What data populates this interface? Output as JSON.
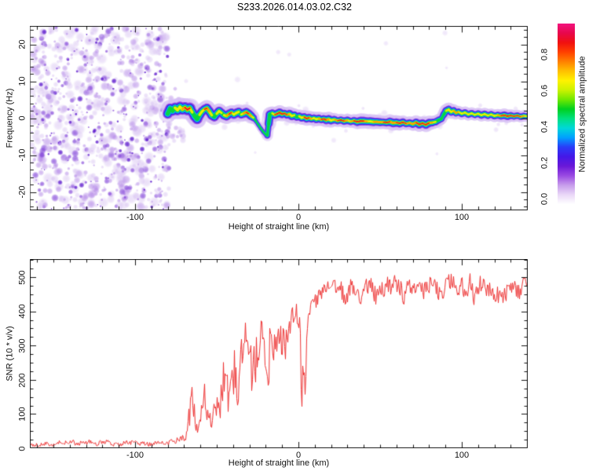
{
  "figure": {
    "title": "S233.2026.014.03.02.C32"
  },
  "chart_data": [
    {
      "type": "heatmap",
      "title": "S233.2026.014.03.02.C32",
      "xlabel": "Height of straight line (km)",
      "ylabel": "Frequency (Hz)",
      "xlim": [
        -164.4,
        140.4
      ],
      "ylim": [
        -25,
        25
      ],
      "xticks": [
        -100,
        0,
        100
      ],
      "xtick_labels": [
        "-100",
        "0",
        "100"
      ],
      "yticks": [
        20,
        10,
        0,
        -10,
        -20
      ],
      "ytick_labels": [
        "20",
        "10",
        "0",
        "-10",
        "-20"
      ],
      "x_minor_step": 10,
      "y_minor_step": 2,
      "colorbar": {
        "label": "Normalized spectral amplitude",
        "tick_labels": [
          "0.0",
          "0.2",
          "0.4",
          "0.6",
          "0.8"
        ],
        "range": [
          0,
          1
        ],
        "colors_bottom_to_top": [
          "#ffffff",
          "#e9d7f7",
          "#c79ceb",
          "#9a4ae2",
          "#6a18d8",
          "#4418e8",
          "#2a3cf8",
          "#00a0ff",
          "#00d8d8",
          "#00e080",
          "#00d020",
          "#70e800",
          "#ccf200",
          "#fff200",
          "#ffc000",
          "#ff8000",
          "#ff4000",
          "#f01010",
          "#e8084c",
          "#f2137e"
        ]
      },
      "noise_region_km": [
        -164.4,
        -79
      ],
      "signal_trace": [
        [
          -80,
          1.2,
          0.45
        ],
        [
          -78.5,
          2.6,
          0.6
        ],
        [
          -77,
          2.0,
          0.7
        ],
        [
          -75.5,
          2.8,
          0.6
        ],
        [
          -74,
          2.2,
          0.75
        ],
        [
          -72.5,
          3.0,
          0.7
        ],
        [
          -71,
          2.4,
          0.8
        ],
        [
          -69.5,
          2.9,
          0.9
        ],
        [
          -68,
          2.3,
          0.92
        ],
        [
          -66.5,
          2.7,
          0.88
        ],
        [
          -65,
          1.6,
          0.7
        ],
        [
          -63.5,
          0.6,
          0.6
        ],
        [
          -62,
          -0.2,
          0.55
        ],
        [
          -60.5,
          0.9,
          0.65
        ],
        [
          -59,
          1.8,
          0.7
        ],
        [
          -57.5,
          2.4,
          0.85
        ],
        [
          -56,
          2.7,
          0.9
        ],
        [
          -54.5,
          1.8,
          0.75
        ],
        [
          -53,
          0.8,
          0.6
        ],
        [
          -51.5,
          0.4,
          0.55
        ],
        [
          -50,
          1.2,
          0.7
        ],
        [
          -48.5,
          1.9,
          0.8
        ],
        [
          -47,
          1.4,
          0.7
        ],
        [
          -45.5,
          0.8,
          0.6
        ],
        [
          -44,
          0.6,
          0.75
        ],
        [
          -42.5,
          1.1,
          0.9
        ],
        [
          -41,
          1.5,
          0.88
        ],
        [
          -39.5,
          1.0,
          0.7
        ],
        [
          -38,
          1.4,
          0.65
        ],
        [
          -36.5,
          1.7,
          0.7
        ],
        [
          -35,
          1.0,
          0.6
        ],
        [
          -33.5,
          1.3,
          0.8
        ],
        [
          -32,
          1.6,
          0.9
        ],
        [
          -30.5,
          1.2,
          0.92
        ],
        [
          -29,
          0.6,
          0.8
        ],
        [
          -27.5,
          0.1,
          0.6
        ],
        [
          -26,
          -0.8,
          0.5
        ],
        [
          -24.5,
          -1.8,
          0.45
        ],
        [
          -23,
          -2.8,
          0.4
        ],
        [
          -21.5,
          -3.7,
          0.38
        ],
        [
          -20,
          -4.4,
          0.35
        ],
        [
          -19,
          -4.7,
          0.3
        ],
        [
          -18.2,
          -1.5,
          0.3
        ],
        [
          -17.5,
          1.0,
          0.55
        ],
        [
          -16,
          1.3,
          0.7
        ],
        [
          -14.5,
          0.9,
          0.88
        ],
        [
          -13,
          1.2,
          0.92
        ],
        [
          -11.5,
          1.5,
          0.9
        ],
        [
          -10,
          1.1,
          0.88
        ],
        [
          -8.5,
          1.3,
          0.9
        ],
        [
          -7,
          0.9,
          0.85
        ],
        [
          -5.5,
          1.1,
          0.8
        ],
        [
          -4,
          0.6,
          0.7
        ],
        [
          -2.5,
          0.8,
          0.65
        ],
        [
          -1,
          0.3,
          0.6
        ],
        [
          0.5,
          0.5,
          0.65
        ],
        [
          2,
          0.1,
          0.7
        ],
        [
          3.5,
          0.3,
          0.88
        ],
        [
          5,
          -0.1,
          0.9
        ],
        [
          6.5,
          0.1,
          0.88
        ],
        [
          8,
          -0.2,
          0.8
        ],
        [
          9.5,
          0.0,
          0.7
        ],
        [
          11,
          -0.3,
          0.75
        ],
        [
          12.5,
          -0.1,
          0.8
        ],
        [
          14,
          -0.4,
          0.88
        ],
        [
          15.5,
          -0.2,
          0.9
        ],
        [
          17,
          -0.5,
          0.88
        ],
        [
          18.5,
          -0.3,
          0.8
        ],
        [
          20,
          -0.6,
          0.75
        ],
        [
          22,
          -0.4,
          0.8
        ],
        [
          24,
          -0.7,
          0.88
        ],
        [
          26,
          -0.5,
          0.9
        ],
        [
          28,
          -0.8,
          0.88
        ],
        [
          30,
          -0.6,
          0.8
        ],
        [
          32,
          -0.9,
          0.75
        ],
        [
          34,
          -0.7,
          0.88
        ],
        [
          36,
          -1.0,
          0.92
        ],
        [
          38,
          -0.8,
          0.9
        ],
        [
          40,
          -0.8,
          0.85
        ],
        [
          42,
          -0.9,
          0.8
        ],
        [
          44,
          -0.9,
          0.75
        ],
        [
          46,
          -1.0,
          0.8
        ],
        [
          48,
          -1.0,
          0.88
        ],
        [
          50,
          -1.1,
          0.8
        ],
        [
          52,
          -1.1,
          0.9
        ],
        [
          54,
          -1.2,
          0.9
        ],
        [
          56,
          -1.0,
          0.85
        ],
        [
          58,
          -1.3,
          0.8
        ],
        [
          60,
          -1.2,
          0.88
        ],
        [
          62,
          -1.4,
          0.9
        ],
        [
          64,
          -1.1,
          0.92
        ],
        [
          66,
          -1.5,
          0.88
        ],
        [
          68,
          -1.3,
          0.85
        ],
        [
          70,
          -1.6,
          0.8
        ],
        [
          72,
          -1.2,
          0.88
        ],
        [
          74,
          -1.7,
          0.9
        ],
        [
          76,
          -1.4,
          0.92
        ],
        [
          78,
          -1.8,
          0.9
        ],
        [
          80,
          -1.3,
          0.88
        ],
        [
          82,
          -1.2,
          0.8
        ],
        [
          84,
          -1.0,
          0.7
        ],
        [
          86,
          -0.5,
          0.6
        ],
        [
          87.5,
          -0.2,
          0.5
        ],
        [
          89,
          1.0,
          0.55
        ],
        [
          90.5,
          2.0,
          0.65
        ],
        [
          92,
          2.3,
          0.7
        ],
        [
          93.5,
          1.7,
          0.75
        ],
        [
          95,
          2.0,
          0.82
        ],
        [
          96.5,
          1.4,
          0.88
        ],
        [
          98,
          1.7,
          0.8
        ],
        [
          100,
          1.2,
          0.75
        ],
        [
          102,
          1.5,
          0.7
        ],
        [
          104,
          1.0,
          0.72
        ],
        [
          106,
          1.3,
          0.75
        ],
        [
          108,
          0.9,
          0.7
        ],
        [
          110,
          1.2,
          0.68
        ],
        [
          112,
          0.8,
          0.7
        ],
        [
          114,
          1.1,
          0.72
        ],
        [
          116,
          0.7,
          0.7
        ],
        [
          118,
          1.0,
          0.68
        ],
        [
          120,
          0.6,
          0.7
        ],
        [
          122,
          0.8,
          0.72
        ],
        [
          124,
          0.6,
          0.88
        ],
        [
          126,
          0.8,
          0.9
        ],
        [
          128,
          0.5,
          0.92
        ],
        [
          130,
          0.7,
          0.9
        ],
        [
          132,
          0.5,
          0.88
        ],
        [
          134,
          0.7,
          0.9
        ],
        [
          136,
          0.4,
          0.88
        ],
        [
          138,
          0.6,
          0.8
        ],
        [
          140,
          0.5,
          0.7
        ]
      ]
    },
    {
      "type": "line",
      "xlabel": "Height of straight line (km)",
      "ylabel": "SNR (10 * v/v)",
      "xlim": [
        -164.4,
        140.4
      ],
      "ylim": [
        0,
        553
      ],
      "xticks": [
        -100,
        0,
        100
      ],
      "xtick_labels": [
        "-100",
        "0",
        "100"
      ],
      "yticks": [
        0,
        100,
        200,
        300,
        400,
        500
      ],
      "ytick_labels": [
        "0",
        "100",
        "200",
        "300",
        "400",
        "500"
      ],
      "x_minor_step": 10,
      "y_minor_step": 25,
      "line_color": "#ee3333",
      "envelope": [
        [
          -164.4,
          13,
          9
        ],
        [
          -150,
          14,
          10
        ],
        [
          -135,
          14,
          10
        ],
        [
          -120,
          15,
          10
        ],
        [
          -105,
          15,
          10
        ],
        [
          -95,
          16,
          11
        ],
        [
          -87,
          17,
          11
        ],
        [
          -80,
          20,
          13
        ],
        [
          -76,
          22,
          14
        ],
        [
          -72,
          26,
          16
        ],
        [
          -69,
          40,
          28
        ],
        [
          -67,
          80,
          60
        ],
        [
          -65.5,
          150,
          90
        ],
        [
          -64,
          90,
          60
        ],
        [
          -62.5,
          55,
          35
        ],
        [
          -61,
          70,
          45
        ],
        [
          -59.5,
          100,
          65
        ],
        [
          -58,
          130,
          75
        ],
        [
          -56.5,
          90,
          55
        ],
        [
          -55,
          65,
          40
        ],
        [
          -53.5,
          60,
          38
        ],
        [
          -52,
          80,
          50
        ],
        [
          -50.5,
          120,
          75
        ],
        [
          -49,
          180,
          100
        ],
        [
          -47.5,
          120,
          80
        ],
        [
          -46,
          160,
          100
        ],
        [
          -44.5,
          210,
          115
        ],
        [
          -43,
          140,
          95
        ],
        [
          -41.5,
          190,
          110
        ],
        [
          -40,
          150,
          100
        ],
        [
          -38.5,
          230,
          125
        ],
        [
          -37,
          170,
          110
        ],
        [
          -35.5,
          250,
          125
        ],
        [
          -34,
          200,
          115
        ],
        [
          -32.5,
          270,
          125
        ],
        [
          -31,
          220,
          115
        ],
        [
          -29.5,
          280,
          120
        ],
        [
          -28,
          240,
          115
        ],
        [
          -26.5,
          300,
          120
        ],
        [
          -25,
          260,
          115
        ],
        [
          -23.5,
          310,
          115
        ],
        [
          -22,
          270,
          115
        ],
        [
          -20.5,
          230,
          120
        ],
        [
          -19,
          170,
          100
        ],
        [
          -17.5,
          260,
          115
        ],
        [
          -16,
          320,
          100
        ],
        [
          -14.5,
          300,
          100
        ],
        [
          -13,
          340,
          90
        ],
        [
          -11.5,
          320,
          95
        ],
        [
          -10,
          350,
          85
        ],
        [
          -8.5,
          330,
          90
        ],
        [
          -7,
          360,
          80
        ],
        [
          -5.5,
          340,
          85
        ],
        [
          -4,
          370,
          75
        ],
        [
          -2.5,
          355,
          80
        ],
        [
          -1,
          380,
          70
        ],
        [
          0.5,
          330,
          120
        ],
        [
          2,
          200,
          140
        ],
        [
          3.5,
          160,
          110
        ],
        [
          5,
          280,
          110
        ],
        [
          6.5,
          360,
          80
        ],
        [
          8,
          390,
          65
        ],
        [
          9.5,
          405,
          60
        ],
        [
          11,
          420,
          55
        ],
        [
          13,
          430,
          55
        ],
        [
          15,
          440,
          50
        ],
        [
          17,
          448,
          48
        ],
        [
          19,
          455,
          45
        ],
        [
          22,
          460,
          45
        ],
        [
          26,
          462,
          44
        ],
        [
          31,
          465,
          44
        ],
        [
          38,
          462,
          45
        ],
        [
          46,
          465,
          45
        ],
        [
          55,
          468,
          45
        ],
        [
          65,
          466,
          45
        ],
        [
          75,
          469,
          45
        ],
        [
          85,
          466,
          46
        ],
        [
          95,
          470,
          45
        ],
        [
          105,
          467,
          46
        ],
        [
          115,
          469,
          45
        ],
        [
          125,
          464,
          45
        ],
        [
          133,
          467,
          45
        ],
        [
          140.4,
          465,
          45
        ]
      ]
    }
  ]
}
